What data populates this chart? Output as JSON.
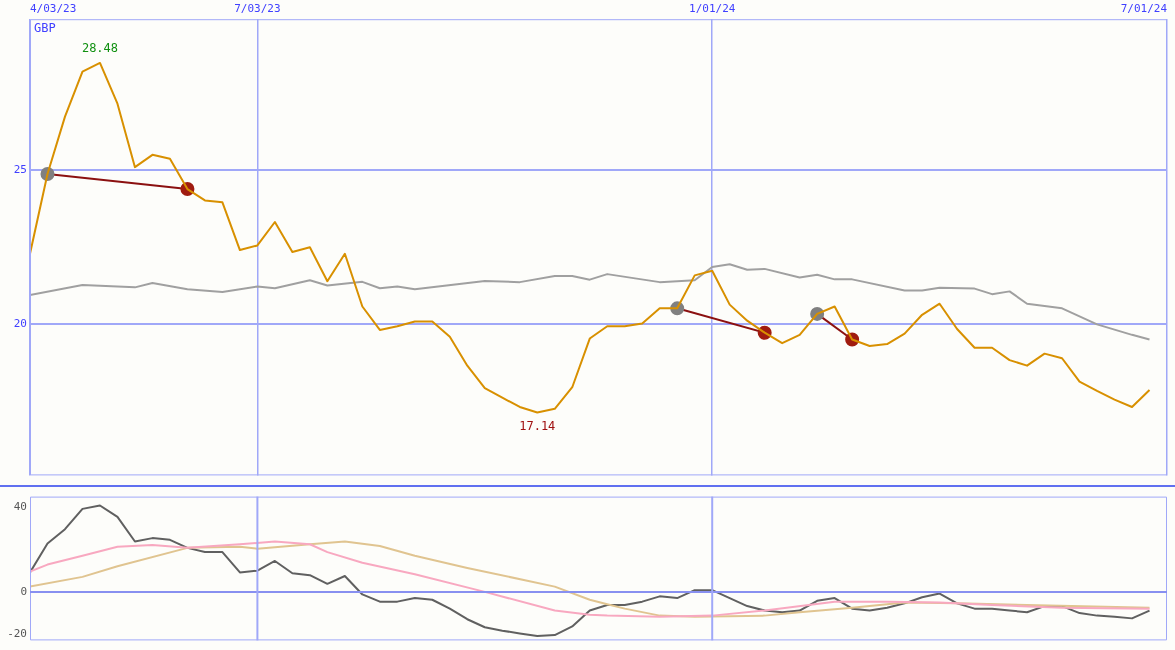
{
  "chart_data": [
    {
      "type": "line",
      "ylabel": "GBP",
      "x": [
        "2023-04-03",
        "2023-04-10",
        "2023-04-17",
        "2023-04-24",
        "2023-05-01",
        "2023-05-08",
        "2023-05-15",
        "2023-05-22",
        "2023-05-29",
        "2023-06-05",
        "2023-06-12",
        "2023-06-19",
        "2023-06-26",
        "2023-07-03",
        "2023-07-10",
        "2023-07-17",
        "2023-07-24",
        "2023-07-31",
        "2023-08-07",
        "2023-08-14",
        "2023-08-21",
        "2023-08-28",
        "2023-09-04",
        "2023-09-11",
        "2023-09-18",
        "2023-09-25",
        "2023-10-02",
        "2023-10-09",
        "2023-10-16",
        "2023-10-23",
        "2023-10-30",
        "2023-11-06",
        "2023-11-13",
        "2023-11-20",
        "2023-11-27",
        "2023-12-04",
        "2023-12-11",
        "2023-12-18",
        "2023-12-25",
        "2024-01-01",
        "2024-01-08",
        "2024-01-15",
        "2024-01-22",
        "2024-01-29",
        "2024-02-05",
        "2024-02-12",
        "2024-02-19",
        "2024-02-26",
        "2024-03-04",
        "2024-03-11",
        "2024-03-18",
        "2024-03-25",
        "2024-04-01",
        "2024-04-08",
        "2024-04-15",
        "2024-04-22",
        "2024-04-29",
        "2024-05-06",
        "2024-05-13",
        "2024-05-20",
        "2024-05-27",
        "2024-06-03",
        "2024-06-10",
        "2024-06-17",
        "2024-06-24"
      ],
      "series": [
        {
          "color": "#d89000",
          "values": [
            22.29,
            24.88,
            26.74,
            28.2,
            28.48,
            27.16,
            25.1,
            25.5,
            25.37,
            24.39,
            24.02,
            23.96,
            22.41,
            22.56,
            23.32,
            22.35,
            22.5,
            21.4,
            22.29,
            20.58,
            19.82,
            19.94,
            20.09,
            20.09,
            19.6,
            18.66,
            17.93,
            17.62,
            17.32,
            17.14,
            17.26,
            17.96,
            19.54,
            19.94,
            19.94,
            20.03,
            20.52,
            20.52,
            21.59,
            21.74,
            20.64,
            20.12,
            19.73,
            19.39,
            19.66,
            20.34,
            20.58,
            19.51,
            19.3,
            19.36,
            19.7,
            20.31,
            20.67,
            19.85,
            19.24,
            19.24,
            18.84,
            18.66,
            19.05,
            18.9,
            18.14,
            17.84,
            17.56,
            17.32,
            17.87
          ]
        },
        {
          "color": "#a0a0a0",
          "x": [
            "2023-04-03",
            "2023-04-24",
            "2023-05-15",
            "2023-05-22",
            "2023-06-05",
            "2023-06-19",
            "2023-07-03",
            "2023-07-10",
            "2023-07-24",
            "2023-07-31",
            "2023-08-14",
            "2023-08-21",
            "2023-08-28",
            "2023-09-04",
            "2023-10-02",
            "2023-10-16",
            "2023-10-30",
            "2023-11-06",
            "2023-11-13",
            "2023-11-20",
            "2023-12-11",
            "2023-12-25",
            "2024-01-01",
            "2024-01-08",
            "2024-01-15",
            "2024-01-22",
            "2024-02-05",
            "2024-02-12",
            "2024-02-19",
            "2024-02-26",
            "2024-03-18",
            "2024-03-25",
            "2024-04-01",
            "2024-04-15",
            "2024-04-22",
            "2024-04-29",
            "2024-05-06",
            "2024-05-20",
            "2024-06-03",
            "2024-06-17",
            "2024-06-24"
          ],
          "values": [
            20.95,
            21.28,
            21.2,
            21.34,
            21.14,
            21.05,
            21.23,
            21.17,
            21.43,
            21.26,
            21.38,
            21.17,
            21.23,
            21.14,
            21.41,
            21.37,
            21.57,
            21.57,
            21.45,
            21.63,
            21.37,
            21.43,
            21.86,
            21.95,
            21.77,
            21.8,
            21.52,
            21.61,
            21.46,
            21.46,
            21.1,
            21.1,
            21.19,
            21.16,
            20.98,
            21.07,
            20.67,
            20.52,
            20.0,
            19.66,
            19.51
          ]
        },
        {
          "color": "#8b1010",
          "marker": "circle",
          "colors": [
            "#808080",
            "#a01c10"
          ],
          "x": [
            "2023-04-10",
            "2023-06-05"
          ],
          "values": [
            24.88,
            24.39
          ]
        },
        {
          "color": "#8b1010",
          "marker": "circle",
          "colors": [
            "#808080",
            "#a01c10"
          ],
          "x": [
            "2023-12-18",
            "2024-01-22"
          ],
          "values": [
            20.52,
            19.73
          ]
        },
        {
          "color": "#8b1010",
          "marker": "circle",
          "colors": [
            "#808080",
            "#a01c10"
          ],
          "x": [
            "2024-02-12",
            "2024-02-26"
          ],
          "values": [
            20.34,
            19.51
          ]
        }
      ],
      "xlim": [
        "2023-04-03",
        "2024-07-01"
      ],
      "xticks": [
        {
          "value": "2023-04-03",
          "label": "4/03/23"
        },
        {
          "value": "2023-07-03",
          "label": "7/03/23"
        },
        {
          "value": "2024-01-01",
          "label": "1/01/24"
        },
        {
          "value": "2024-07-01",
          "label": "7/01/24"
        }
      ],
      "ylim": [
        15.1,
        29.9
      ],
      "yticks": [
        20,
        25
      ],
      "grid": true,
      "marker": "none",
      "legend": false,
      "annotations": [
        {
          "text": "28.48",
          "x": "2023-05-01",
          "y": 28.48
        },
        {
          "text": "17.14",
          "x": "2023-10-23",
          "y": 17.14
        }
      ]
    },
    {
      "type": "line",
      "x": [
        "2023-04-03",
        "2023-04-10",
        "2023-04-17",
        "2023-04-24",
        "2023-05-01",
        "2023-05-08",
        "2023-05-15",
        "2023-05-22",
        "2023-05-29",
        "2023-06-05",
        "2023-06-12",
        "2023-06-19",
        "2023-06-26",
        "2023-07-03",
        "2023-07-10",
        "2023-07-17",
        "2023-07-24",
        "2023-07-31",
        "2023-08-07",
        "2023-08-14",
        "2023-08-21",
        "2023-08-28",
        "2023-09-04",
        "2023-09-11",
        "2023-09-18",
        "2023-09-25",
        "2023-10-02",
        "2023-10-09",
        "2023-10-16",
        "2023-10-23",
        "2023-10-30",
        "2023-11-06",
        "2023-11-13",
        "2023-11-20",
        "2023-11-27",
        "2023-12-04",
        "2023-12-11",
        "2023-12-18",
        "2023-12-25",
        "2024-01-01",
        "2024-01-08",
        "2024-01-15",
        "2024-01-22",
        "2024-01-29",
        "2024-02-05",
        "2024-02-12",
        "2024-02-19",
        "2024-02-26",
        "2024-03-04",
        "2024-03-11",
        "2024-03-18",
        "2024-03-25",
        "2024-04-01",
        "2024-04-08",
        "2024-04-15",
        "2024-04-22",
        "2024-04-29",
        "2024-05-06",
        "2024-05-13",
        "2024-05-20",
        "2024-05-27",
        "2024-06-03",
        "2024-06-10",
        "2024-06-17",
        "2024-06-24"
      ],
      "series": [
        {
          "color": "#f8a8c0",
          "x": [
            "2023-04-03",
            "2023-04-10",
            "2023-04-24",
            "2023-05-08",
            "2023-05-22",
            "2023-06-05",
            "2023-06-26",
            "2023-07-10",
            "2023-07-24",
            "2023-07-31",
            "2023-08-14",
            "2023-09-04",
            "2023-10-02",
            "2023-10-30",
            "2023-11-13",
            "2023-11-20",
            "2023-12-11",
            "2024-01-01",
            "2024-01-22",
            "2024-02-19",
            "2024-03-11",
            "2024-04-01",
            "2024-04-22",
            "2024-05-20",
            "2024-06-24"
          ],
          "values": [
            9.6,
            12.9,
            17.1,
            21.3,
            22.1,
            20.8,
            22.5,
            23.8,
            22.5,
            18.8,
            13.8,
            8.3,
            0,
            -8.8,
            -10.8,
            -11.2,
            -11.7,
            -11.2,
            -8.8,
            -4.6,
            -4.6,
            -5,
            -6.2,
            -7.5,
            -7.9
          ]
        },
        {
          "color": "#e0c490",
          "x": [
            "2023-04-03",
            "2023-04-24",
            "2023-05-08",
            "2023-06-05",
            "2023-06-26",
            "2023-07-03",
            "2023-07-24",
            "2023-08-07",
            "2023-08-21",
            "2023-09-04",
            "2023-09-25",
            "2023-10-30",
            "2023-11-13",
            "2023-11-20",
            "2023-11-27",
            "2023-12-11",
            "2023-12-25",
            "2024-01-22",
            "2024-02-05",
            "2024-02-26",
            "2024-03-18",
            "2024-04-08",
            "2024-05-06",
            "2024-06-24"
          ],
          "values": [
            2.5,
            7.1,
            12.1,
            20.8,
            21.3,
            20.4,
            22.5,
            23.8,
            21.7,
            17.1,
            11.3,
            2.5,
            -3.7,
            -5.8,
            -7.9,
            -11.2,
            -11.7,
            -11.2,
            -9.6,
            -7.5,
            -5,
            -5.4,
            -6.2,
            -7.5
          ]
        },
        {
          "color": "#606060",
          "values": [
            9.2,
            22.9,
            29.6,
            39.2,
            40.8,
            35.4,
            23.8,
            25.4,
            24.6,
            20.8,
            18.8,
            18.8,
            9.2,
            10,
            14.6,
            8.8,
            7.9,
            3.8,
            7.5,
            -1.2,
            -4.6,
            -4.6,
            -2.9,
            -3.7,
            -7.9,
            -12.9,
            -16.7,
            -18.3,
            -19.6,
            -20.8,
            -20.4,
            -16.3,
            -8.8,
            -6.2,
            -6.2,
            -4.6,
            -2.1,
            -2.9,
            0.8,
            0.8,
            -2.9,
            -6.7,
            -8.8,
            -9.6,
            -8.8,
            -4.2,
            -2.9,
            -7.9,
            -8.8,
            -7.5,
            -5.4,
            -2.5,
            -0.8,
            -5.4,
            -7.9,
            -7.9,
            -8.8,
            -9.6,
            -6.7,
            -6.7,
            -10,
            -11.2,
            -11.7,
            -12.5,
            -8.8
          ]
        }
      ],
      "xlim": [
        "2023-04-03",
        "2024-07-01"
      ],
      "ylim": [
        -22.9,
        45
      ],
      "yticks": [
        -20,
        0,
        40
      ],
      "tick_labels": "y",
      "marker": "none",
      "legend": false,
      "ref_lines": [
        {
          "axis": "y",
          "value": 0,
          "color": "#8890f0"
        },
        {
          "axis": "x",
          "value": "2023-07-03",
          "color": "#a0a8f8"
        },
        {
          "axis": "x",
          "value": "2024-01-01",
          "color": "#a0a8f8"
        }
      ]
    }
  ]
}
